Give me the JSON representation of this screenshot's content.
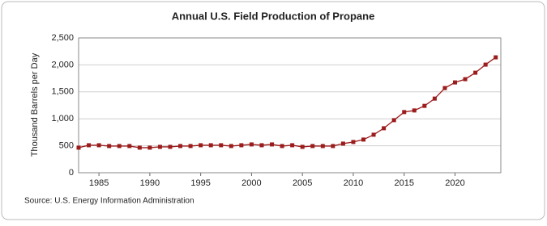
{
  "chart_data": {
    "type": "line",
    "title": "Annual U.S. Field Production of Propane",
    "y_label": "Thousand Barrels per Day",
    "source": "Source: U.S. Energy Information Administration",
    "x": [
      1983,
      1984,
      1985,
      1986,
      1987,
      1988,
      1989,
      1990,
      1991,
      1992,
      1993,
      1994,
      1995,
      1996,
      1997,
      1998,
      1999,
      2000,
      2001,
      2002,
      2003,
      2004,
      2005,
      2006,
      2007,
      2008,
      2009,
      2010,
      2011,
      2012,
      2013,
      2014,
      2015,
      2016,
      2017,
      2018,
      2019,
      2020,
      2021,
      2022,
      2023,
      2024
    ],
    "series": [
      {
        "name": "Field Production of Propane",
        "color": "#9b1c1c",
        "values": [
          465,
          510,
          510,
          495,
          495,
          495,
          465,
          465,
          480,
          480,
          495,
          495,
          510,
          510,
          510,
          495,
          510,
          525,
          510,
          525,
          495,
          510,
          480,
          495,
          495,
          495,
          540,
          570,
          615,
          705,
          825,
          975,
          1125,
          1155,
          1240,
          1375,
          1570,
          1675,
          1735,
          1855,
          2005,
          2140
        ]
      }
    ],
    "xlim": [
      1983,
      2024.5
    ],
    "xticks": [
      1985,
      1990,
      1995,
      2000,
      2005,
      2010,
      2015,
      2020
    ],
    "ylim": [
      0,
      2500
    ],
    "yticks": [
      0,
      500,
      {
        "value": 1000,
        "label": "1,000"
      },
      {
        "value": 1500,
        "label": "1,500"
      },
      {
        "value": 2000,
        "label": "2,000"
      },
      {
        "value": 2500,
        "label": "2,500"
      }
    ],
    "grid": true
  }
}
